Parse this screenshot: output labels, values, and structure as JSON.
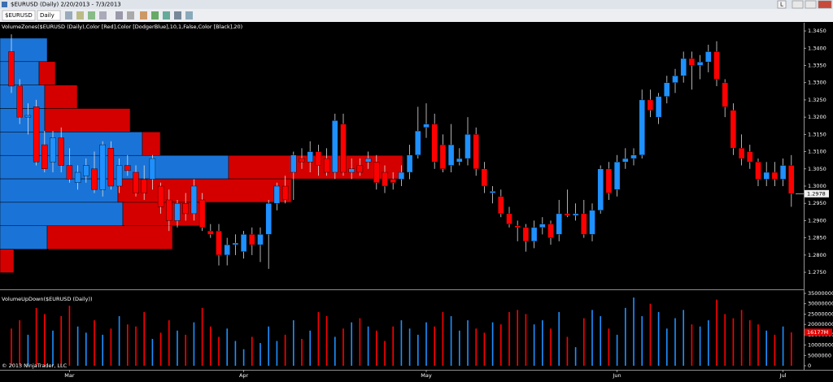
{
  "window": {
    "title": "$EURUSD (Daily)  2/20/2013 - 7/3/2013",
    "button": "L"
  },
  "toolbar": {
    "instrument": "$EURUSD",
    "interval": "Daily"
  },
  "copyright": "© 2013 NinjaTrader, LLC",
  "chart_data": [
    {
      "type": "candlestick",
      "indicator_label": "VolumeZones($EURUSD (Daily),Color [Red],Color [DodgerBlue],10,1,False,Color [Black],20)",
      "categories": [
        null,
        null,
        null,
        null,
        null,
        null,
        null,
        "Mar",
        null,
        null,
        null,
        null,
        null,
        null,
        null,
        null,
        null,
        null,
        null,
        null,
        null,
        null,
        null,
        null,
        null,
        null,
        null,
        null,
        "Apr",
        null,
        null,
        null,
        null,
        null,
        null,
        null,
        null,
        null,
        null,
        null,
        null,
        null,
        null,
        null,
        null,
        null,
        null,
        null,
        null,
        null,
        "May",
        null,
        null,
        null,
        null,
        null,
        null,
        null,
        null,
        null,
        null,
        null,
        null,
        null,
        null,
        null,
        null,
        null,
        null,
        null,
        null,
        null,
        null,
        "Jun",
        null,
        null,
        null,
        null,
        null,
        null,
        null,
        null,
        null,
        null,
        null,
        null,
        null,
        null,
        null,
        null,
        null,
        null,
        null,
        "Jul",
        null
      ],
      "open": [
        1.339,
        1.329,
        1.32,
        1.323,
        1.312,
        1.307,
        1.314,
        1.306,
        1.301,
        1.303,
        1.305,
        1.299,
        1.311,
        1.3,
        1.306,
        1.304,
        1.302,
        1.302,
        1.3,
        1.296,
        1.29,
        1.295,
        1.292,
        1.296,
        1.287,
        1.287,
        1.28,
        1.283,
        1.281,
        1.286,
        1.283,
        1.286,
        1.295,
        1.3,
        1.304,
        1.308,
        1.307,
        1.31,
        1.308,
        1.304,
        1.318,
        1.304,
        1.306,
        1.307,
        1.307,
        1.304,
        1.302,
        1.302,
        1.304,
        1.309,
        1.317,
        1.318,
        1.312,
        1.306,
        1.307,
        1.308,
        1.315,
        1.305,
        1.298,
        1.297,
        1.292,
        1.2885,
        1.288,
        1.284,
        1.288,
        1.289,
        1.286,
        1.292,
        1.2915,
        1.292,
        1.286,
        1.293,
        1.305,
        1.299,
        1.307,
        1.308,
        1.309,
        1.325,
        1.32,
        1.326,
        1.33,
        1.332,
        1.337,
        1.335,
        1.336,
        1.339,
        1.33,
        1.322,
        1.311,
        1.31,
        1.307,
        1.302,
        1.304,
        1.302,
        1.306
      ],
      "high": [
        1.344,
        1.331,
        1.324,
        1.325,
        1.316,
        1.316,
        1.317,
        1.311,
        1.306,
        1.308,
        1.31,
        1.313,
        1.313,
        1.308,
        1.309,
        1.306,
        1.306,
        1.309,
        1.301,
        1.299,
        1.296,
        1.298,
        1.302,
        1.298,
        1.289,
        1.289,
        1.285,
        1.286,
        1.287,
        1.288,
        1.288,
        1.296,
        1.301,
        1.303,
        1.31,
        1.311,
        1.313,
        1.312,
        1.311,
        1.321,
        1.321,
        1.308,
        1.308,
        1.31,
        1.309,
        1.306,
        1.304,
        1.306,
        1.312,
        1.323,
        1.324,
        1.321,
        1.315,
        1.318,
        1.311,
        1.32,
        1.317,
        1.307,
        1.3,
        1.299,
        1.294,
        1.29,
        1.289,
        1.29,
        1.291,
        1.29,
        1.296,
        1.299,
        1.295,
        1.296,
        1.295,
        1.306,
        1.307,
        1.309,
        1.311,
        1.311,
        1.328,
        1.328,
        1.327,
        1.332,
        1.334,
        1.339,
        1.339,
        1.338,
        1.341,
        1.342,
        1.331,
        1.324,
        1.315,
        1.312,
        1.308,
        1.307,
        1.307,
        1.308,
        1.309
      ],
      "low": [
        1.327,
        1.318,
        1.315,
        1.306,
        1.304,
        1.304,
        1.304,
        1.301,
        1.299,
        1.301,
        1.298,
        1.297,
        1.299,
        1.298,
        1.303,
        1.297,
        1.296,
        1.299,
        1.292,
        1.287,
        1.288,
        1.29,
        1.29,
        1.287,
        1.285,
        1.277,
        1.277,
        1.28,
        1.279,
        1.28,
        1.278,
        1.276,
        1.293,
        1.295,
        1.296,
        1.305,
        1.304,
        1.303,
        1.303,
        1.302,
        1.303,
        1.302,
        1.303,
        1.305,
        1.299,
        1.298,
        1.299,
        1.3,
        1.302,
        1.308,
        1.314,
        1.305,
        1.304,
        1.304,
        1.306,
        1.306,
        1.303,
        1.298,
        1.295,
        1.291,
        1.288,
        1.284,
        1.281,
        1.282,
        1.286,
        1.283,
        1.284,
        1.291,
        1.29,
        1.285,
        1.284,
        1.292,
        1.296,
        1.297,
        1.305,
        1.306,
        1.308,
        1.32,
        1.318,
        1.324,
        1.327,
        1.33,
        1.328,
        1.331,
        1.333,
        1.329,
        1.32,
        1.309,
        1.306,
        1.305,
        1.3,
        1.3,
        1.3,
        1.3,
        1.294
      ],
      "close": [
        1.329,
        1.32,
        1.3205,
        1.307,
        1.305,
        1.314,
        1.306,
        1.302,
        1.304,
        1.306,
        1.299,
        1.312,
        1.3,
        1.306,
        1.3045,
        1.298,
        1.298,
        1.308,
        1.294,
        1.29,
        1.295,
        1.292,
        1.3,
        1.288,
        1.286,
        1.28,
        1.283,
        1.2835,
        1.286,
        1.283,
        1.286,
        1.295,
        1.3,
        1.296,
        1.309,
        1.307,
        1.31,
        1.306,
        1.304,
        1.319,
        1.304,
        1.305,
        1.304,
        1.308,
        1.301,
        1.3,
        1.301,
        1.304,
        1.309,
        1.316,
        1.318,
        1.307,
        1.305,
        1.312,
        1.308,
        1.315,
        1.305,
        1.3,
        1.2985,
        1.292,
        1.289,
        1.288,
        1.284,
        1.288,
        1.289,
        1.285,
        1.292,
        1.2915,
        1.292,
        1.286,
        1.293,
        1.305,
        1.298,
        1.307,
        1.308,
        1.309,
        1.325,
        1.322,
        1.326,
        1.33,
        1.332,
        1.337,
        1.335,
        1.336,
        1.339,
        1.331,
        1.323,
        1.311,
        1.308,
        1.307,
        1.302,
        1.304,
        1.302,
        1.306,
        1.2978
      ],
      "up_color": "#1e90ff",
      "down_color": "#ff0000",
      "ylim": [
        1.2703,
        1.3469
      ],
      "yticks": [
        {
          "value": 1.275,
          "label": "1.2750"
        },
        {
          "value": 1.28,
          "label": "1.2800"
        },
        {
          "value": 1.285,
          "label": "1.2850"
        },
        {
          "value": 1.29,
          "label": "1.2900"
        },
        {
          "value": 1.295,
          "label": "1.2950"
        },
        {
          "value": 1.3,
          "label": "1.3000"
        },
        {
          "value": 1.305,
          "label": "1.3050"
        },
        {
          "value": 1.31,
          "label": "1.3100"
        },
        {
          "value": 1.315,
          "label": "1.3150"
        },
        {
          "value": 1.32,
          "label": "1.3200"
        },
        {
          "value": 1.325,
          "label": "1.3250"
        },
        {
          "value": 1.33,
          "label": "1.3300"
        },
        {
          "value": 1.335,
          "label": "1.3350"
        },
        {
          "value": 1.34,
          "label": "1.3400"
        },
        {
          "value": 1.345,
          "label": "1.3450"
        }
      ],
      "last_price": 1.2978,
      "volume_zones": {
        "bounds": [
          1.3429,
          1.3361,
          1.3293,
          1.3225,
          1.3157,
          1.3089,
          1.3021,
          1.2953,
          1.2885,
          1.2817,
          1.2749
        ],
        "up": [
          58,
          48,
          55,
          55,
          175,
          281,
          145,
          151,
          58,
          0
        ],
        "down": [
          0,
          20,
          40,
          105,
          22,
          214,
          213,
          97,
          154,
          17
        ],
        "up_color": "#1a74d8",
        "down_color": "#d40000"
      }
    },
    {
      "type": "volume",
      "indicator_label": "VolumeUpDown($EURUSD (Daily))",
      "values": [
        18000000,
        22000000,
        15000000,
        28000000,
        25000000,
        17000000,
        24000000,
        29000000,
        19000000,
        16000000,
        22000000,
        15000000,
        18000000,
        24000000,
        20000000,
        19000000,
        26000000,
        13000000,
        16000000,
        22000000,
        17000000,
        15000000,
        21000000,
        28000000,
        19000000,
        14000000,
        18000000,
        12000000,
        8000000,
        14000000,
        11000000,
        19000000,
        12000000,
        15000000,
        22000000,
        13000000,
        17000000,
        26000000,
        24000000,
        14000000,
        18000000,
        21000000,
        23000000,
        19000000,
        17000000,
        12000000,
        19000000,
        22000000,
        18000000,
        15000000,
        21000000,
        19000000,
        26000000,
        24000000,
        17000000,
        22000000,
        18000000,
        16000000,
        21000000,
        20000000,
        26000000,
        27000000,
        25000000,
        20000000,
        22000000,
        18000000,
        26000000,
        14000000,
        9000000,
        23000000,
        27000000,
        24000000,
        18000000,
        15000000,
        28000000,
        33000000,
        24000000,
        30000000,
        26000000,
        18000000,
        23000000,
        27000000,
        20000000,
        19000000,
        22000000,
        32000000,
        25000000,
        23000000,
        27000000,
        22000000,
        20000000,
        17000000,
        15000000,
        19000000,
        16177000
      ],
      "last_label": "16177M",
      "ylim": [
        0,
        35000000
      ],
      "yticks": [
        0,
        5000000,
        10000000,
        15000000,
        20000000,
        25000000,
        30000000,
        35000000
      ]
    }
  ]
}
